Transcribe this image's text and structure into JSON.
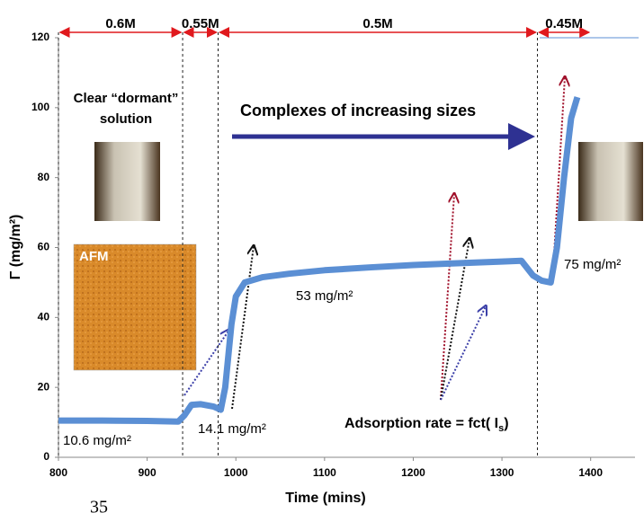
{
  "chart_data": {
    "type": "line",
    "x_label": "Time (mins)",
    "y_label": "Γ (mg/m²)",
    "xlim": [
      800,
      1450
    ],
    "xticks": [
      800,
      900,
      1000,
      1100,
      1200,
      1300,
      1400
    ],
    "ylim": [
      0,
      120
    ],
    "yticks": [
      0,
      20,
      40,
      60,
      80,
      100,
      120
    ],
    "series": [
      {
        "color": "#5b8fd4",
        "x": [
          800,
          850,
          900,
          935,
          942,
          950,
          960,
          975,
          983,
          988,
          995,
          1000,
          1010,
          1030,
          1060,
          1100,
          1150,
          1200,
          1250,
          1300,
          1322,
          1335,
          1345,
          1355,
          1362,
          1370,
          1378,
          1385
        ],
        "values": [
          10.5,
          10.5,
          10.4,
          10.2,
          12,
          15,
          15.2,
          14.5,
          13.6,
          20,
          38,
          46,
          50,
          51.5,
          52.5,
          53.5,
          54.3,
          55,
          55.5,
          56,
          56.2,
          52,
          50.5,
          50,
          60,
          80,
          97,
          103
        ]
      }
    ],
    "regions": [
      {
        "label": "0.6M",
        "x": [
          800,
          940
        ]
      },
      {
        "label": "0.55M",
        "x": [
          940,
          980
        ]
      },
      {
        "label": "0.5M",
        "x": [
          980,
          1340
        ]
      },
      {
        "label": "0.45M",
        "x": [
          1340,
          1400
        ]
      }
    ],
    "annotations": {
      "clear_line1": "Clear “dormant”",
      "clear_line2": "solution",
      "complexes": "Complexes of increasing sizes",
      "afm": "AFM",
      "value_53": "53 mg/m²",
      "value_75": "75 mg/m²",
      "value_14": "14.1 mg/m²",
      "value_10": "10.6 mg/m²",
      "rate": "Adsorption rate = fct( I",
      "rate_sub": "s",
      "rate_tail": ")"
    },
    "page_number": "35"
  }
}
